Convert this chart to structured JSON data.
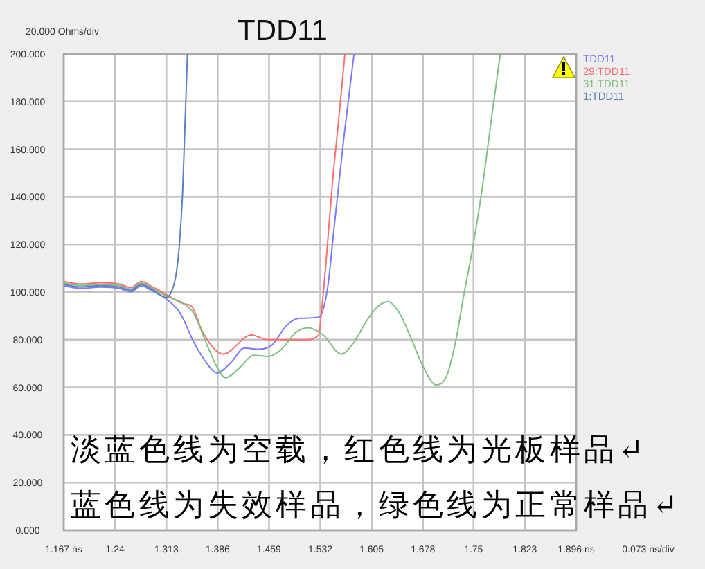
{
  "chart_data": {
    "type": "line",
    "title": "TDD11",
    "xlabel": "0.073 ns/div",
    "ylabel": "20.000 Ohms/div",
    "annotations": [
      "淡蓝色线为空载，红色线为光板样品↵",
      "蓝色线为失效样品，绿色线为正常样品↵"
    ],
    "xlim": [
      1.167,
      1.896
    ],
    "xticks": [
      {
        "value": 1.167,
        "label": "1.167 ns"
      },
      1.24,
      1.313,
      1.386,
      1.459,
      1.532,
      1.605,
      1.678,
      1.75,
      1.823,
      {
        "value": 1.896,
        "label": "1.896 ns"
      }
    ],
    "ylim": [
      0,
      200
    ],
    "yticks": [
      {
        "value": 0,
        "label": "0.000"
      },
      {
        "value": 20,
        "label": "20.000"
      },
      {
        "value": 40,
        "label": "40.000"
      },
      {
        "value": 60,
        "label": "60.000"
      },
      {
        "value": 80,
        "label": "80.000"
      },
      {
        "value": 100,
        "label": "100.000"
      },
      {
        "value": 120,
        "label": "120.000"
      },
      {
        "value": 140,
        "label": "140.000"
      },
      {
        "value": 160,
        "label": "160.000"
      },
      {
        "value": 180,
        "label": "180.000"
      },
      {
        "value": 200,
        "label": "200.000"
      }
    ],
    "grid": true,
    "legend": "right",
    "series": [
      {
        "name": "TDD11",
        "color": "#7b7bff",
        "x": [
          1.167,
          1.191,
          1.22,
          1.245,
          1.263,
          1.277,
          1.295,
          1.313,
          1.333,
          1.352,
          1.372,
          1.385,
          1.405,
          1.424,
          1.444,
          1.464,
          1.484,
          1.503,
          1.53,
          1.542,
          1.552,
          1.566,
          1.58
        ],
        "values": [
          102.6,
          101.6,
          102.1,
          101.6,
          100.1,
          102.6,
          100.1,
          97.1,
          91,
          79,
          69.5,
          66,
          70.5,
          76.5,
          76,
          78,
          86,
          89,
          89.5,
          101,
          128,
          166,
          200
        ]
      },
      {
        "name": "29:TDD11",
        "color": "#ff6e6e",
        "x": [
          1.167,
          1.191,
          1.22,
          1.245,
          1.263,
          1.277,
          1.295,
          1.313,
          1.339,
          1.349,
          1.365,
          1.394,
          1.434,
          1.457,
          1.477,
          1.51,
          1.53,
          1.533,
          1.54,
          1.549,
          1.558,
          1.567
        ],
        "values": [
          104.4,
          103.4,
          103.9,
          103.4,
          101.9,
          104.4,
          101.9,
          98.9,
          95,
          94,
          83,
          74,
          82,
          80,
          80,
          80,
          82,
          89.5,
          112,
          145,
          172,
          200
        ]
      },
      {
        "name": "31:TDD11",
        "color": "#80c080",
        "x": [
          1.167,
          1.191,
          1.22,
          1.245,
          1.263,
          1.277,
          1.295,
          1.313,
          1.339,
          1.352,
          1.372,
          1.385,
          1.397,
          1.418,
          1.437,
          1.457,
          1.477,
          1.497,
          1.515,
          1.536,
          1.562,
          1.58,
          1.598,
          1.614,
          1.628,
          1.645,
          1.662,
          1.677,
          1.697,
          1.712,
          1.725,
          1.736,
          1.749,
          1.762,
          1.776,
          1.788
        ],
        "values": [
          103.8,
          102.8,
          103.3,
          102.8,
          101.3,
          103.8,
          101.3,
          98.3,
          95,
          91,
          77,
          68.5,
          64,
          68.5,
          73.5,
          73,
          76,
          83,
          85,
          82,
          74,
          79,
          88,
          94,
          96,
          91,
          80,
          69.5,
          61,
          65,
          80,
          98.5,
          119,
          143,
          174,
          200
        ]
      },
      {
        "name": "1:TDD11",
        "color": "#5b7fc0",
        "x": [
          1.167,
          1.191,
          1.22,
          1.245,
          1.263,
          1.277,
          1.295,
          1.313,
          1.319,
          1.326,
          1.331,
          1.336,
          1.339,
          1.343
        ],
        "values": [
          103.2,
          102.2,
          102.7,
          102.2,
          100.7,
          103.2,
          100.7,
          97.7,
          99.5,
          106,
          118,
          141,
          166,
          200
        ]
      }
    ]
  }
}
